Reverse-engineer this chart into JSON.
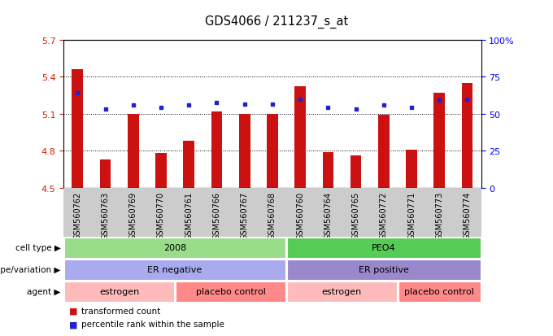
{
  "title": "GDS4066 / 211237_s_at",
  "samples": [
    "GSM560762",
    "GSM560763",
    "GSM560769",
    "GSM560770",
    "GSM560761",
    "GSM560766",
    "GSM560767",
    "GSM560768",
    "GSM560760",
    "GSM560764",
    "GSM560765",
    "GSM560772",
    "GSM560771",
    "GSM560773",
    "GSM560774"
  ],
  "bar_values": [
    5.46,
    4.73,
    5.1,
    4.78,
    4.88,
    5.12,
    5.1,
    5.1,
    5.32,
    4.79,
    4.76,
    5.09,
    4.81,
    5.27,
    5.35
  ],
  "dot_values": [
    5.27,
    5.14,
    5.17,
    5.15,
    5.17,
    5.19,
    5.18,
    5.18,
    5.22,
    5.15,
    5.14,
    5.17,
    5.15,
    5.21,
    5.22
  ],
  "ylim_left": [
    4.5,
    5.7
  ],
  "yticks_left": [
    4.5,
    4.8,
    5.1,
    5.4,
    5.7
  ],
  "yticks_right": [
    0,
    25,
    50,
    75,
    100
  ],
  "bar_color": "#cc1111",
  "dot_color": "#2222cc",
  "bar_bottom": 4.5,
  "cell_type_groups": [
    {
      "label": "2008",
      "start": 0,
      "end": 8,
      "color": "#99dd88"
    },
    {
      "label": "PEO4",
      "start": 8,
      "end": 15,
      "color": "#55cc55"
    }
  ],
  "genotype_groups": [
    {
      "label": "ER negative",
      "start": 0,
      "end": 8,
      "color": "#aaaaee"
    },
    {
      "label": "ER positive",
      "start": 8,
      "end": 15,
      "color": "#9988cc"
    }
  ],
  "agent_groups": [
    {
      "label": "estrogen",
      "start": 0,
      "end": 4,
      "color": "#ffbbbb"
    },
    {
      "label": "placebo control",
      "start": 4,
      "end": 8,
      "color": "#ff8888"
    },
    {
      "label": "estrogen",
      "start": 8,
      "end": 12,
      "color": "#ffbbbb"
    },
    {
      "label": "placebo control",
      "start": 12,
      "end": 15,
      "color": "#ff8888"
    }
  ],
  "row_labels": [
    "cell type",
    "genotype/variation",
    "agent"
  ],
  "legend_items": [
    {
      "color": "#cc1111",
      "label": "transformed count"
    },
    {
      "color": "#2222cc",
      "label": "percentile rank within the sample"
    }
  ],
  "ticklabel_bg": "#cccccc",
  "chart_bg": "#ffffff"
}
